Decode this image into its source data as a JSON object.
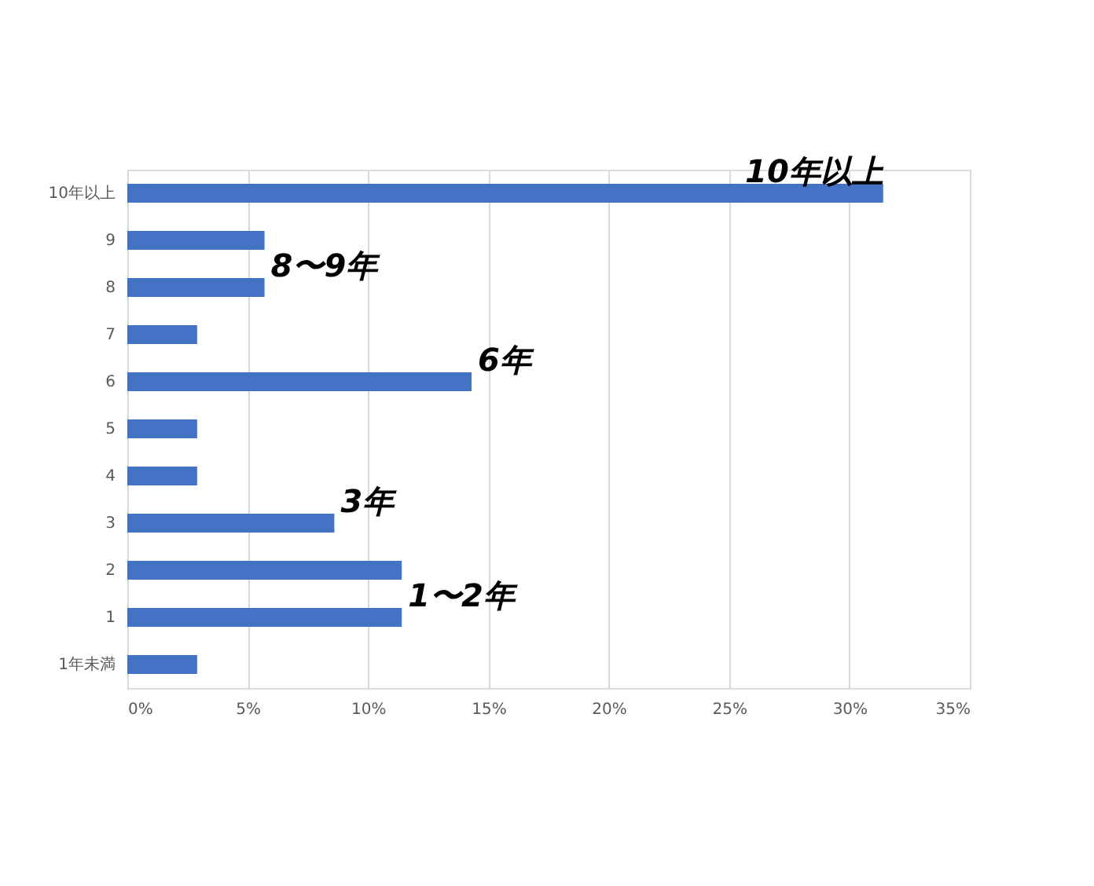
{
  "chart_data": {
    "type": "bar",
    "orientation": "horizontal",
    "categories": [
      "10年以上",
      "9",
      "8",
      "7",
      "6",
      "5",
      "4",
      "3",
      "2",
      "1",
      "1年未満"
    ],
    "values": [
      31.4,
      5.7,
      5.7,
      2.9,
      14.3,
      2.9,
      2.9,
      8.6,
      11.4,
      11.4,
      2.9
    ],
    "color": "#4472c4",
    "xlim": [
      0,
      35
    ],
    "xticks": [
      {
        "value": 0,
        "label": "0%"
      },
      {
        "value": 5,
        "label": "5%"
      },
      {
        "value": 10,
        "label": "10%"
      },
      {
        "value": 15,
        "label": "15%"
      },
      {
        "value": 20,
        "label": "20%"
      },
      {
        "value": 25,
        "label": "25%"
      },
      {
        "value": 30,
        "label": "30%"
      },
      {
        "value": 35,
        "label": "35%"
      }
    ],
    "grid": "x",
    "annotations": [
      {
        "text": "10年以上",
        "x": 31.4,
        "y": "10年以上"
      },
      {
        "text": "8〜9年",
        "x": 5.7,
        "y": "8"
      },
      {
        "text": "6年",
        "x": 14.3,
        "y": "6"
      },
      {
        "text": "3年",
        "x": 8.6,
        "y": "3"
      },
      {
        "text": "1〜2年",
        "x": 11.4,
        "y": "1"
      }
    ]
  }
}
